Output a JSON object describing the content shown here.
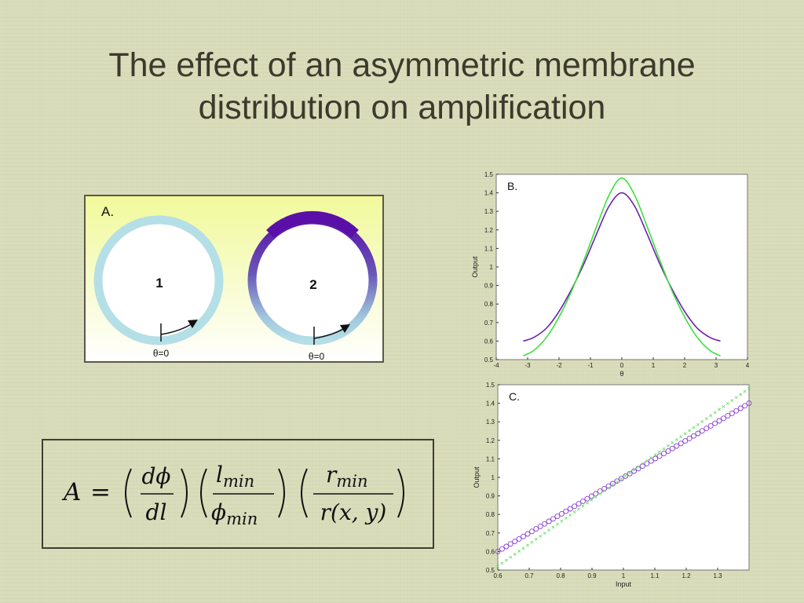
{
  "slide": {
    "title_line1": "The effect of an asymmetric membrane",
    "title_line2": "distribution on amplification"
  },
  "panel_a": {
    "label": "A.",
    "cell1_label": "1",
    "cell2_label": "2",
    "theta1_label": "θ=0",
    "theta2_label": "θ=0",
    "colors": {
      "bg_top": "#f1f99a",
      "bg_bottom": "#ffffff",
      "membrane": "#b5dfe6",
      "membrane_dense": "#5a10a8"
    }
  },
  "formula": {
    "lhs": "A",
    "eq": "=",
    "n1": "dϕ",
    "d1": "dl",
    "n2": "l",
    "n2_sub": "min",
    "d2": "ϕ",
    "d2_sub": "min",
    "n3": "r",
    "n3_sub": "min",
    "d3": "r(x, y)"
  },
  "chart_data": [
    {
      "type": "line",
      "panel_label": "B.",
      "xlabel": "θ",
      "ylabel": "Output",
      "xlim": [
        -4,
        4
      ],
      "ylim": [
        0.5,
        1.5
      ],
      "xticks": [
        "-4",
        "-3",
        "-2",
        "-1",
        "0",
        "1",
        "2",
        "3",
        "4"
      ],
      "yticks": [
        "0.5",
        "0.6",
        "0.7",
        "0.8",
        "0.9",
        "1",
        "1.1",
        "1.2",
        "1.3",
        "1.4",
        "1.5"
      ],
      "series": [
        {
          "color": "#6a1fb0",
          "x": [
            -3.14,
            -2.8,
            -2.4,
            -2.0,
            -1.6,
            -1.2,
            -0.8,
            -0.4,
            0,
            0.4,
            0.8,
            1.2,
            1.6,
            2.0,
            2.4,
            2.8,
            3.14
          ],
          "y": [
            0.6,
            0.62,
            0.67,
            0.76,
            0.88,
            1.02,
            1.18,
            1.33,
            1.4,
            1.33,
            1.18,
            1.02,
            0.88,
            0.76,
            0.67,
            0.62,
            0.6
          ]
        },
        {
          "color": "#3de03d",
          "x": [
            -3.14,
            -2.8,
            -2.4,
            -2.0,
            -1.6,
            -1.2,
            -0.8,
            -0.4,
            0,
            0.4,
            0.8,
            1.2,
            1.6,
            2.0,
            2.4,
            2.8,
            3.14
          ],
          "y": [
            0.52,
            0.55,
            0.62,
            0.73,
            0.87,
            1.04,
            1.22,
            1.39,
            1.48,
            1.39,
            1.22,
            1.04,
            0.87,
            0.73,
            0.62,
            0.55,
            0.52
          ]
        }
      ],
      "grid": false
    },
    {
      "type": "scatter",
      "panel_label": "C.",
      "xlabel": "Input",
      "ylabel": "Output",
      "xlim": [
        0.6,
        1.4
      ],
      "ylim": [
        0.5,
        1.5
      ],
      "xticks": [
        "0.6",
        "0.7",
        "0.8",
        "0.9",
        "1",
        "1.1",
        "1.2",
        "1.3"
      ],
      "yticks": [
        "0.5",
        "0.6",
        "0.7",
        "0.8",
        "0.9",
        "1",
        "1.1",
        "1.2",
        "1.3",
        "1.4",
        "1.5"
      ],
      "series": [
        {
          "color": "#8b3fd0",
          "marker": "circle",
          "x_start": 0.6,
          "x_end": 1.4,
          "y_start": 0.6,
          "y_end": 1.4
        },
        {
          "color": "#6ee06e",
          "marker": "cross",
          "x_start": 0.6,
          "x_end": 1.4,
          "y_start": 0.52,
          "y_end": 1.48
        }
      ],
      "grid": false
    }
  ]
}
